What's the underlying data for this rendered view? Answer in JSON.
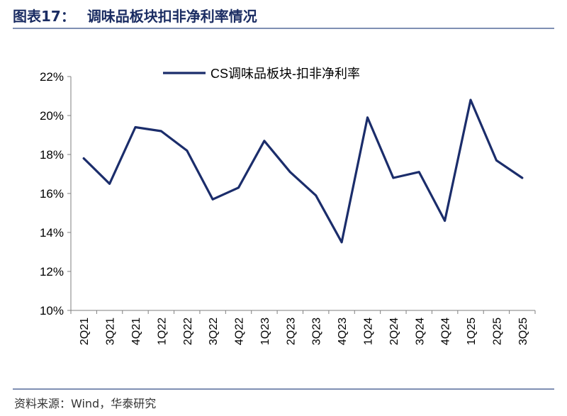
{
  "header": {
    "figure_label": "图表17：",
    "title": "调味品板块扣非净利率情况"
  },
  "source": "资料来源：Wind，华泰研究",
  "colors": {
    "line": "#1b2d6b",
    "axis": "#7f7f7f",
    "header": "#1b2d63"
  },
  "chart_data": {
    "type": "line",
    "categories": [
      "2Q21",
      "3Q21",
      "4Q21",
      "1Q22",
      "2Q22",
      "3Q22",
      "4Q22",
      "1Q23",
      "2Q23",
      "3Q23",
      "4Q23",
      "1Q24",
      "2Q24",
      "3Q24",
      "4Q24",
      "1Q25",
      "2Q25",
      "3Q25"
    ],
    "series": [
      {
        "name": "CS调味品板块-扣非净利率",
        "values": [
          17.8,
          16.5,
          19.4,
          19.2,
          18.2,
          15.7,
          16.3,
          18.7,
          17.1,
          15.9,
          13.5,
          19.9,
          16.8,
          17.1,
          14.6,
          20.8,
          17.7,
          16.8
        ]
      }
    ],
    "yticks": [
      "10%",
      "12%",
      "14%",
      "16%",
      "18%",
      "20%",
      "22%"
    ],
    "ylim": [
      10,
      22
    ],
    "ytick_values": [
      10,
      12,
      14,
      16,
      18,
      20,
      22
    ],
    "grid": false,
    "legend_position": "top-center"
  }
}
